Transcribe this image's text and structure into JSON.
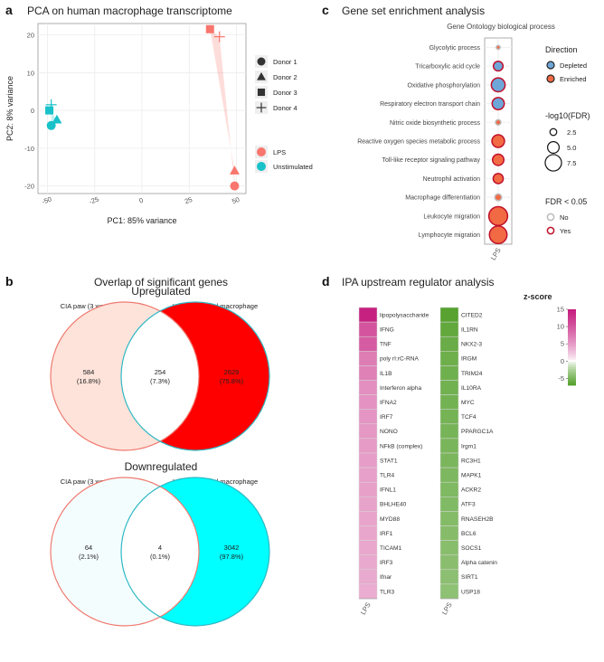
{
  "panels": {
    "a": {
      "label": "a",
      "title": "PCA on human macrophage transcriptome"
    },
    "b": {
      "label": "b",
      "title": "Overlap of significant genes"
    },
    "c": {
      "label": "c",
      "title": "Gene set enrichment analysis",
      "subtitle": "Gene Ontology biological process"
    },
    "d": {
      "label": "d",
      "title": "IPA upstream regulator analysis"
    }
  },
  "chart_data": [
    {
      "type": "scatter",
      "id": "pca",
      "title": "PCA on human macrophage transcriptome",
      "xlabel": "PC1: 85% variance",
      "ylabel": "PC2: 8% variance",
      "xlim": [
        -55,
        55
      ],
      "ylim": [
        -22,
        23
      ],
      "xticks": [
        -50,
        -25,
        0,
        25,
        50
      ],
      "yticks": [
        20,
        10,
        0,
        -10,
        -20
      ],
      "grid": true,
      "legend_shape_title": "",
      "legend_color_title": "",
      "donors": [
        "Donor 1",
        "Donor 2",
        "Donor 3",
        "Donor 4"
      ],
      "conditions": [
        {
          "name": "LPS",
          "color": "#F8766D"
        },
        {
          "name": "Unstimulated",
          "color": "#19C1C9"
        }
      ],
      "points": [
        {
          "condition": "LPS",
          "donor": "Donor 1",
          "x": 49,
          "y": -20
        },
        {
          "condition": "LPS",
          "donor": "Donor 2",
          "x": 49,
          "y": -16
        },
        {
          "condition": "LPS",
          "donor": "Donor 3",
          "x": 36,
          "y": 21.5
        },
        {
          "condition": "LPS",
          "donor": "Donor 4",
          "x": 41,
          "y": 19.5
        },
        {
          "condition": "Unstimulated",
          "donor": "Donor 1",
          "x": -48,
          "y": -4
        },
        {
          "condition": "Unstimulated",
          "donor": "Donor 2",
          "x": -45,
          "y": -2.5
        },
        {
          "condition": "Unstimulated",
          "donor": "Donor 3",
          "x": -49,
          "y": 0
        },
        {
          "condition": "Unstimulated",
          "donor": "Donor 4",
          "x": -48,
          "y": 1.5
        }
      ]
    },
    {
      "type": "venn",
      "id": "venn-up",
      "title": "Upregulated",
      "sets": [
        "CIA paw (3 weeks)",
        "LPS stimulated macrophage"
      ],
      "left_only": {
        "count": "584",
        "pct": "(16.8%)"
      },
      "overlap": {
        "count": "254",
        "pct": "(7.3%)"
      },
      "right_only": {
        "count": "2629",
        "pct": "(75.8%)"
      },
      "colors": {
        "left_fill": "#FDE3DA",
        "overlap_fill": "#FFFFFF",
        "right_fill": "#FF0000",
        "left_stroke": "#F07A70",
        "right_stroke": "#2EB8C4"
      }
    },
    {
      "type": "venn",
      "id": "venn-down",
      "title": "Downregulated",
      "sets": [
        "CIA paw (3 weeks)",
        "LPS stimulated macrophage"
      ],
      "left_only": {
        "count": "64",
        "pct": "(2.1%)"
      },
      "overlap": {
        "count": "4",
        "pct": "(0.1%)"
      },
      "right_only": {
        "count": "3042",
        "pct": "(97.8%)"
      },
      "colors": {
        "left_fill": "#F4FDFE",
        "overlap_fill": "#FFFFFF",
        "right_fill": "#00FFFF",
        "left_stroke": "#F07A70",
        "right_stroke": "#2EB8C4"
      }
    },
    {
      "type": "scatter",
      "id": "gsea",
      "title": "Gene set enrichment analysis",
      "subtitle": "Gene Ontology biological process",
      "x_category": "LPS",
      "legend_direction_title": "Direction",
      "legend_size_title": "-log10(FDR)",
      "legend_fdr_title": "FDR < 0.05",
      "direction_levels": [
        {
          "name": "Depleted",
          "color": "#6EA6D8"
        },
        {
          "name": "Enriched",
          "color": "#F26A43"
        }
      ],
      "size_levels": [
        2.5,
        5.0,
        7.5
      ],
      "size_level_labels": [
        "2.5",
        "5.0",
        "7.5"
      ],
      "fdr_levels": [
        {
          "name": "No",
          "color": "#BBBBBB"
        },
        {
          "name": "Yes",
          "color": "#C0102A"
        }
      ],
      "terms": [
        {
          "name": "Glycolytic process",
          "direction": "Enriched",
          "log10fdr": 0.8,
          "sig": false
        },
        {
          "name": "Tricarboxylic acid cycle",
          "direction": "Depleted",
          "log10fdr": 3.6,
          "sig": true
        },
        {
          "name": "Oxidative phosphorylation",
          "direction": "Depleted",
          "log10fdr": 5.6,
          "sig": true
        },
        {
          "name": "Respiratory electron transport chain",
          "direction": "Depleted",
          "log10fdr": 4.8,
          "sig": true
        },
        {
          "name": "Nitric oxide biosynthetic process",
          "direction": "Enriched",
          "log10fdr": 1.5,
          "sig": false
        },
        {
          "name": "Reactive oxygen species metabolic process",
          "direction": "Enriched",
          "log10fdr": 5.0,
          "sig": true
        },
        {
          "name": "Toll-like receptor signaling pathway",
          "direction": "Enriched",
          "log10fdr": 4.4,
          "sig": true
        },
        {
          "name": "Neutrophil activation",
          "direction": "Enriched",
          "log10fdr": 3.8,
          "sig": true
        },
        {
          "name": "Macrophage differentiation",
          "direction": "Enriched",
          "log10fdr": 2.2,
          "sig": false
        },
        {
          "name": "Leukocyte migration",
          "direction": "Enriched",
          "log10fdr": 8.0,
          "sig": true
        },
        {
          "name": "Lymphocyte migration",
          "direction": "Enriched",
          "log10fdr": 7.4,
          "sig": true
        }
      ]
    },
    {
      "type": "heatmap",
      "id": "ipa",
      "title": "IPA upstream regulator analysis",
      "legend_title": "z-score",
      "zlim": [
        -7,
        15
      ],
      "zticks": [
        15,
        10,
        5,
        0,
        -5
      ],
      "ztick_labels": [
        "15",
        "10",
        "5",
        "0",
        "-5"
      ],
      "column_label": "LPS",
      "left_column": [
        {
          "gene": "lipopolysaccharide",
          "z": 14.5
        },
        {
          "gene": "IFNG",
          "z": 10.2
        },
        {
          "gene": "TNF",
          "z": 9.6
        },
        {
          "gene": "poly rI:rC-RNA",
          "z": 7.2
        },
        {
          "gene": "IL1B",
          "z": 6.8
        },
        {
          "gene": "Interferon alpha",
          "z": 5.8
        },
        {
          "gene": "IFNA2",
          "z": 5.6
        },
        {
          "gene": "IRF7",
          "z": 5.4
        },
        {
          "gene": "NONO",
          "z": 5.2
        },
        {
          "gene": "NFkB (complex)",
          "z": 5.0
        },
        {
          "gene": "STAT1",
          "z": 4.8
        },
        {
          "gene": "TLR4",
          "z": 4.7
        },
        {
          "gene": "IFNL1",
          "z": 4.6
        },
        {
          "gene": "BHLHE40",
          "z": 4.5
        },
        {
          "gene": "MYD88",
          "z": 4.4
        },
        {
          "gene": "IRF1",
          "z": 4.3
        },
        {
          "gene": "TICAM1",
          "z": 4.2
        },
        {
          "gene": "IRF3",
          "z": 4.1
        },
        {
          "gene": "Ifnar",
          "z": 4.0
        },
        {
          "gene": "TLR3",
          "z": 3.9
        }
      ],
      "right_column": [
        {
          "gene": "CITED2",
          "z": -6.8
        },
        {
          "gene": "IL1RN",
          "z": -6.2
        },
        {
          "gene": "NKX2-3",
          "z": -5.8
        },
        {
          "gene": "IRGM",
          "z": -5.6
        },
        {
          "gene": "TRIM24",
          "z": -5.5
        },
        {
          "gene": "IL10RA",
          "z": -5.4
        },
        {
          "gene": "MYC",
          "z": -5.3
        },
        {
          "gene": "TCF4",
          "z": -5.2
        },
        {
          "gene": "PPARGC1A",
          "z": -5.1
        },
        {
          "gene": "Irgm1",
          "z": -5.0
        },
        {
          "gene": "RC3H1",
          "z": -4.9
        },
        {
          "gene": "MAPK1",
          "z": -4.8
        },
        {
          "gene": "ACKR2",
          "z": -4.7
        },
        {
          "gene": "ATF3",
          "z": -4.6
        },
        {
          "gene": "RNASEH2B",
          "z": -4.5
        },
        {
          "gene": "BCL6",
          "z": -4.4
        },
        {
          "gene": "SOCS1",
          "z": -4.3
        },
        {
          "gene": "Alpha catenin",
          "z": -4.2
        },
        {
          "gene": "SIRT1",
          "z": -4.1
        },
        {
          "gene": "USP18",
          "z": -4.0
        }
      ]
    }
  ]
}
